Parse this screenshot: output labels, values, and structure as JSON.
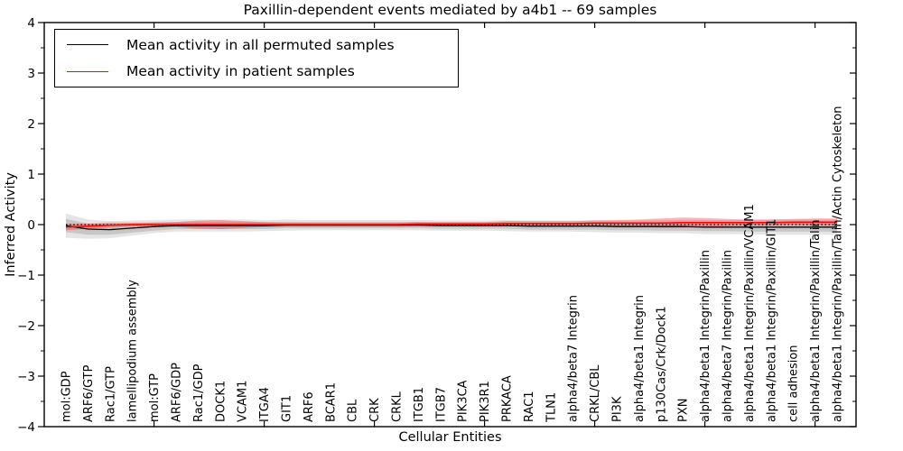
{
  "title": "Paxillin-dependent events mediated by a4b1 -- 69 samples",
  "legend": {
    "position": "upper left",
    "items": [
      {
        "label": "Mean activity in all permuted samples",
        "color": "#000000"
      },
      {
        "label": "Mean activity in patient samples",
        "color": "#ff0000"
      }
    ]
  },
  "chart_data": {
    "type": "line",
    "title": "Paxillin-dependent events mediated by a4b1 -- 69 samples",
    "xlabel": "Cellular Entities",
    "ylabel": "Inferred Activity",
    "ylim": [
      -4,
      4
    ],
    "yticks": [
      4,
      3,
      2,
      1,
      0,
      -1,
      -2,
      -3,
      -4
    ],
    "y_minor_step": 0.5,
    "x_major_tick_positions": [
      5,
      10,
      15,
      20,
      25,
      30,
      35
    ],
    "grid": false,
    "legend_position": "upper left",
    "zero_line": {
      "style": "dotted",
      "color": "#000000",
      "y": 0
    },
    "categories": [
      "mol:GDP",
      "ARF6/GTP",
      "Rac1/GTP",
      "lamellipodium assembly",
      "mol:GTP",
      "ARF6/GDP",
      "Rac1/GDP",
      "DOCK1",
      "VCAM1",
      "ITGA4",
      "GIT1",
      "ARF6",
      "BCAR1",
      "CBL",
      "CRK",
      "CRKL",
      "ITGB1",
      "ITGB7",
      "PIK3CA",
      "PIK3R1",
      "PRKACA",
      "RAC1",
      "TLN1",
      "alpha4/beta7 Integrin",
      "CRKL/CBL",
      "PI3K",
      "alpha4/beta1 Integrin",
      "p130Cas/Crk/Dock1",
      "PXN",
      "alpha4/beta1 Integrin/Paxillin",
      "alpha4/beta7 Integrin/Paxillin",
      "alpha4/beta1 Integrin/Paxillin/VCAM1",
      "alpha4/beta1 Integrin/Paxillin/GIT1",
      "cell adhesion",
      "alpha4/beta1 Integrin/Paxillin/Talin",
      "alpha4/beta1 Integrin/Paxillin/Talin/Actin Cytoskeleton"
    ],
    "series": [
      {
        "name": "Mean activity in all permuted samples",
        "color": "#000000",
        "values": [
          -0.02,
          -0.09,
          -0.1,
          -0.07,
          -0.04,
          -0.02,
          -0.02,
          -0.02,
          -0.02,
          -0.02,
          -0.01,
          -0.01,
          -0.01,
          -0.01,
          -0.01,
          -0.01,
          -0.01,
          -0.02,
          -0.02,
          -0.02,
          -0.02,
          -0.03,
          -0.03,
          -0.03,
          -0.03,
          -0.04,
          -0.04,
          -0.04,
          -0.04,
          -0.05,
          -0.05,
          -0.05,
          -0.05,
          -0.05,
          -0.05,
          -0.05
        ]
      },
      {
        "name": "Mean activity in patient samples",
        "color": "#ff0000",
        "values": [
          -0.05,
          -0.03,
          -0.01,
          0.0,
          0.0,
          0.0,
          0.0,
          0.0,
          0.0,
          0.0,
          0.0,
          0.0,
          0.0,
          0.0,
          0.0,
          0.0,
          0.01,
          0.01,
          0.01,
          0.01,
          0.02,
          0.02,
          0.02,
          0.02,
          0.03,
          0.03,
          0.03,
          0.03,
          0.04,
          0.04,
          0.04,
          0.04,
          0.04,
          0.05,
          0.05,
          0.05
        ]
      }
    ],
    "bands": [
      {
        "name": "permuted-samples-spread-outer",
        "center_series": 0,
        "color": "rgba(0,0,0,0.10)",
        "half_widths": [
          0.24,
          0.19,
          0.17,
          0.15,
          0.13,
          0.12,
          0.12,
          0.12,
          0.12,
          0.11,
          0.11,
          0.1,
          0.1,
          0.1,
          0.1,
          0.1,
          0.1,
          0.1,
          0.1,
          0.1,
          0.11,
          0.11,
          0.11,
          0.11,
          0.12,
          0.12,
          0.12,
          0.13,
          0.13,
          0.14,
          0.14,
          0.14,
          0.15,
          0.15,
          0.15,
          0.15
        ]
      },
      {
        "name": "permuted-samples-spread-inner",
        "center_series": 0,
        "color": "rgba(0,0,0,0.13)",
        "half_widths": [
          0.13,
          0.11,
          0.1,
          0.09,
          0.08,
          0.07,
          0.07,
          0.07,
          0.07,
          0.07,
          0.06,
          0.06,
          0.06,
          0.06,
          0.06,
          0.06,
          0.06,
          0.06,
          0.06,
          0.06,
          0.06,
          0.07,
          0.07,
          0.07,
          0.07,
          0.07,
          0.07,
          0.08,
          0.08,
          0.08,
          0.08,
          0.09,
          0.09,
          0.09,
          0.09,
          0.09
        ]
      },
      {
        "name": "patient-samples-spread",
        "center_series": 1,
        "color": "rgba(255,0,0,0.30)",
        "half_widths": [
          0.06,
          0.05,
          0.05,
          0.04,
          0.04,
          0.05,
          0.08,
          0.09,
          0.07,
          0.05,
          0.04,
          0.04,
          0.04,
          0.04,
          0.04,
          0.04,
          0.04,
          0.04,
          0.04,
          0.04,
          0.05,
          0.05,
          0.05,
          0.05,
          0.05,
          0.06,
          0.07,
          0.09,
          0.1,
          0.09,
          0.07,
          0.06,
          0.06,
          0.06,
          0.07,
          0.07
        ]
      }
    ]
  }
}
